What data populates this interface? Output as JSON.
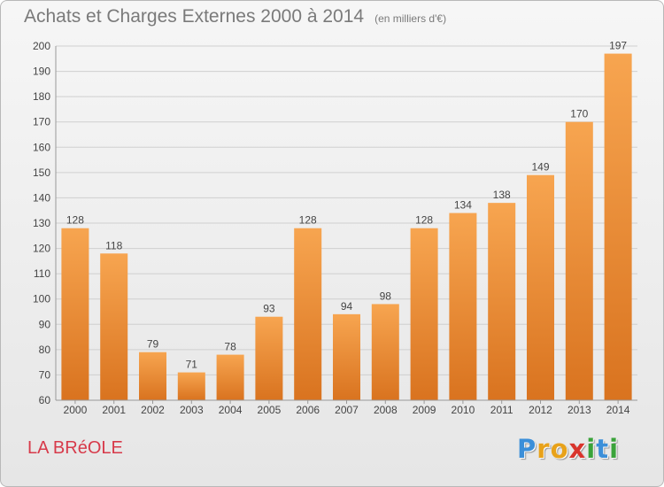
{
  "header": {
    "title": "Achats et Charges Externes 2000 à 2014",
    "subtitle": "(en milliers d'€)"
  },
  "footer": {
    "commune": "LA BRéOLE",
    "logo_letters": [
      {
        "ch": "P",
        "color": "#3b8fd9"
      },
      {
        "ch": "r",
        "color": "#e8a21a"
      },
      {
        "ch": "o",
        "color": "#e8a21a"
      },
      {
        "ch": "x",
        "color": "#d8342c"
      },
      {
        "ch": "i",
        "color": "#3aa33a"
      },
      {
        "ch": "t",
        "color": "#3b8fd9"
      },
      {
        "ch": "i",
        "color": "#3aa33a"
      }
    ]
  },
  "colors": {
    "bar_light": "#f7a550",
    "bar_dark": "#d9731f",
    "commune": "#d73a4a"
  },
  "chart_data": {
    "type": "bar",
    "title": "Achats et Charges Externes 2000 à 2014",
    "categories": [
      "2000",
      "2001",
      "2002",
      "2003",
      "2004",
      "2005",
      "2006",
      "2007",
      "2008",
      "2009",
      "2010",
      "2011",
      "2012",
      "2013",
      "2014"
    ],
    "values": [
      128,
      118,
      79,
      71,
      78,
      93,
      128,
      94,
      98,
      128,
      134,
      138,
      149,
      170,
      197
    ],
    "ylim": [
      60,
      200
    ],
    "yticks": [
      60,
      70,
      80,
      90,
      100,
      110,
      120,
      130,
      140,
      150,
      160,
      170,
      180,
      190,
      200
    ],
    "grid": true,
    "data_labels": true
  }
}
